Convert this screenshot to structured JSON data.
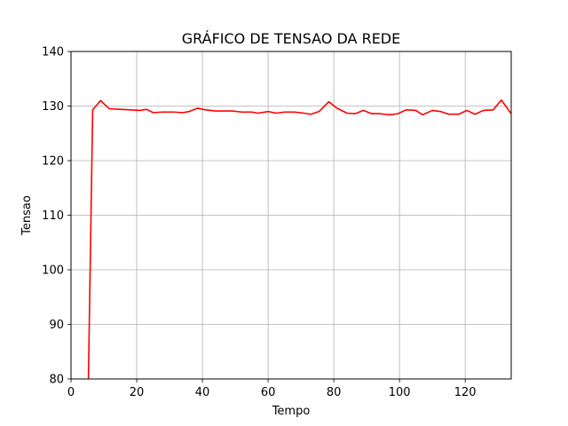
{
  "chart_data": {
    "type": "line",
    "title": "GRÁFICO DE TENSAO DA REDE",
    "xlabel": "Tempo",
    "ylabel": "Tensao",
    "xlim": [
      0,
      134
    ],
    "ylim": [
      80,
      140
    ],
    "xticks": [
      0,
      20,
      40,
      60,
      80,
      100,
      120
    ],
    "yticks": [
      80,
      90,
      100,
      110,
      120,
      130,
      140
    ],
    "grid": true,
    "series": [
      {
        "color": "#ff0000",
        "x": [
          5.3,
          6.6,
          9,
          11.7,
          15,
          18,
          21,
          23,
          25,
          28,
          31,
          34,
          36,
          38.5,
          41,
          44,
          47,
          49,
          52,
          55,
          57,
          60,
          62.5,
          65,
          68,
          71,
          73,
          75.5,
          78.5,
          81,
          84,
          86.5,
          89,
          91.5,
          94,
          97,
          99.5,
          102,
          105,
          107,
          110,
          112.5,
          115,
          118,
          120.5,
          123,
          125.5,
          128.5,
          131,
          134
        ],
        "y": [
          80.0,
          129.3,
          131.0,
          129.5,
          129.4,
          129.3,
          129.2,
          129.4,
          128.8,
          128.9,
          128.9,
          128.8,
          129.0,
          129.6,
          129.3,
          129.1,
          129.1,
          129.1,
          128.9,
          128.9,
          128.7,
          129.0,
          128.7,
          128.9,
          128.9,
          128.7,
          128.5,
          129.0,
          130.8,
          129.6,
          128.7,
          128.6,
          129.2,
          128.6,
          128.6,
          128.4,
          128.6,
          129.3,
          129.2,
          128.4,
          129.2,
          129.0,
          128.5,
          128.5,
          129.2,
          128.5,
          129.2,
          129.3,
          131.1,
          128.6
        ]
      }
    ]
  }
}
